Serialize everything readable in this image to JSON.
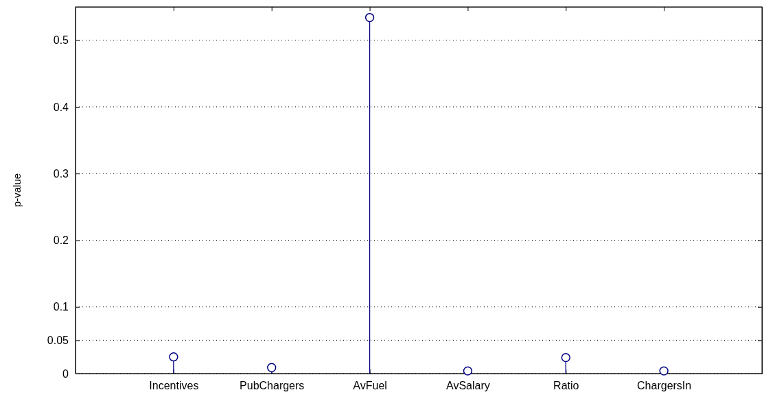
{
  "chart_data": {
    "type": "lollipop",
    "ylabel": "p-value",
    "categories": [
      "Incentives",
      "PubChargers",
      "AvFuel",
      "AvSalary",
      "Ratio",
      "ChargersIn"
    ],
    "values": [
      0.025,
      0.009,
      0.534,
      0.004,
      0.024,
      0.004
    ],
    "color": "#000080",
    "marker": "circle",
    "ylim": [
      0,
      0.55
    ],
    "yticks": [
      0,
      0.05,
      0.1,
      0.2,
      0.3,
      0.4,
      0.5
    ],
    "grid": "y"
  }
}
